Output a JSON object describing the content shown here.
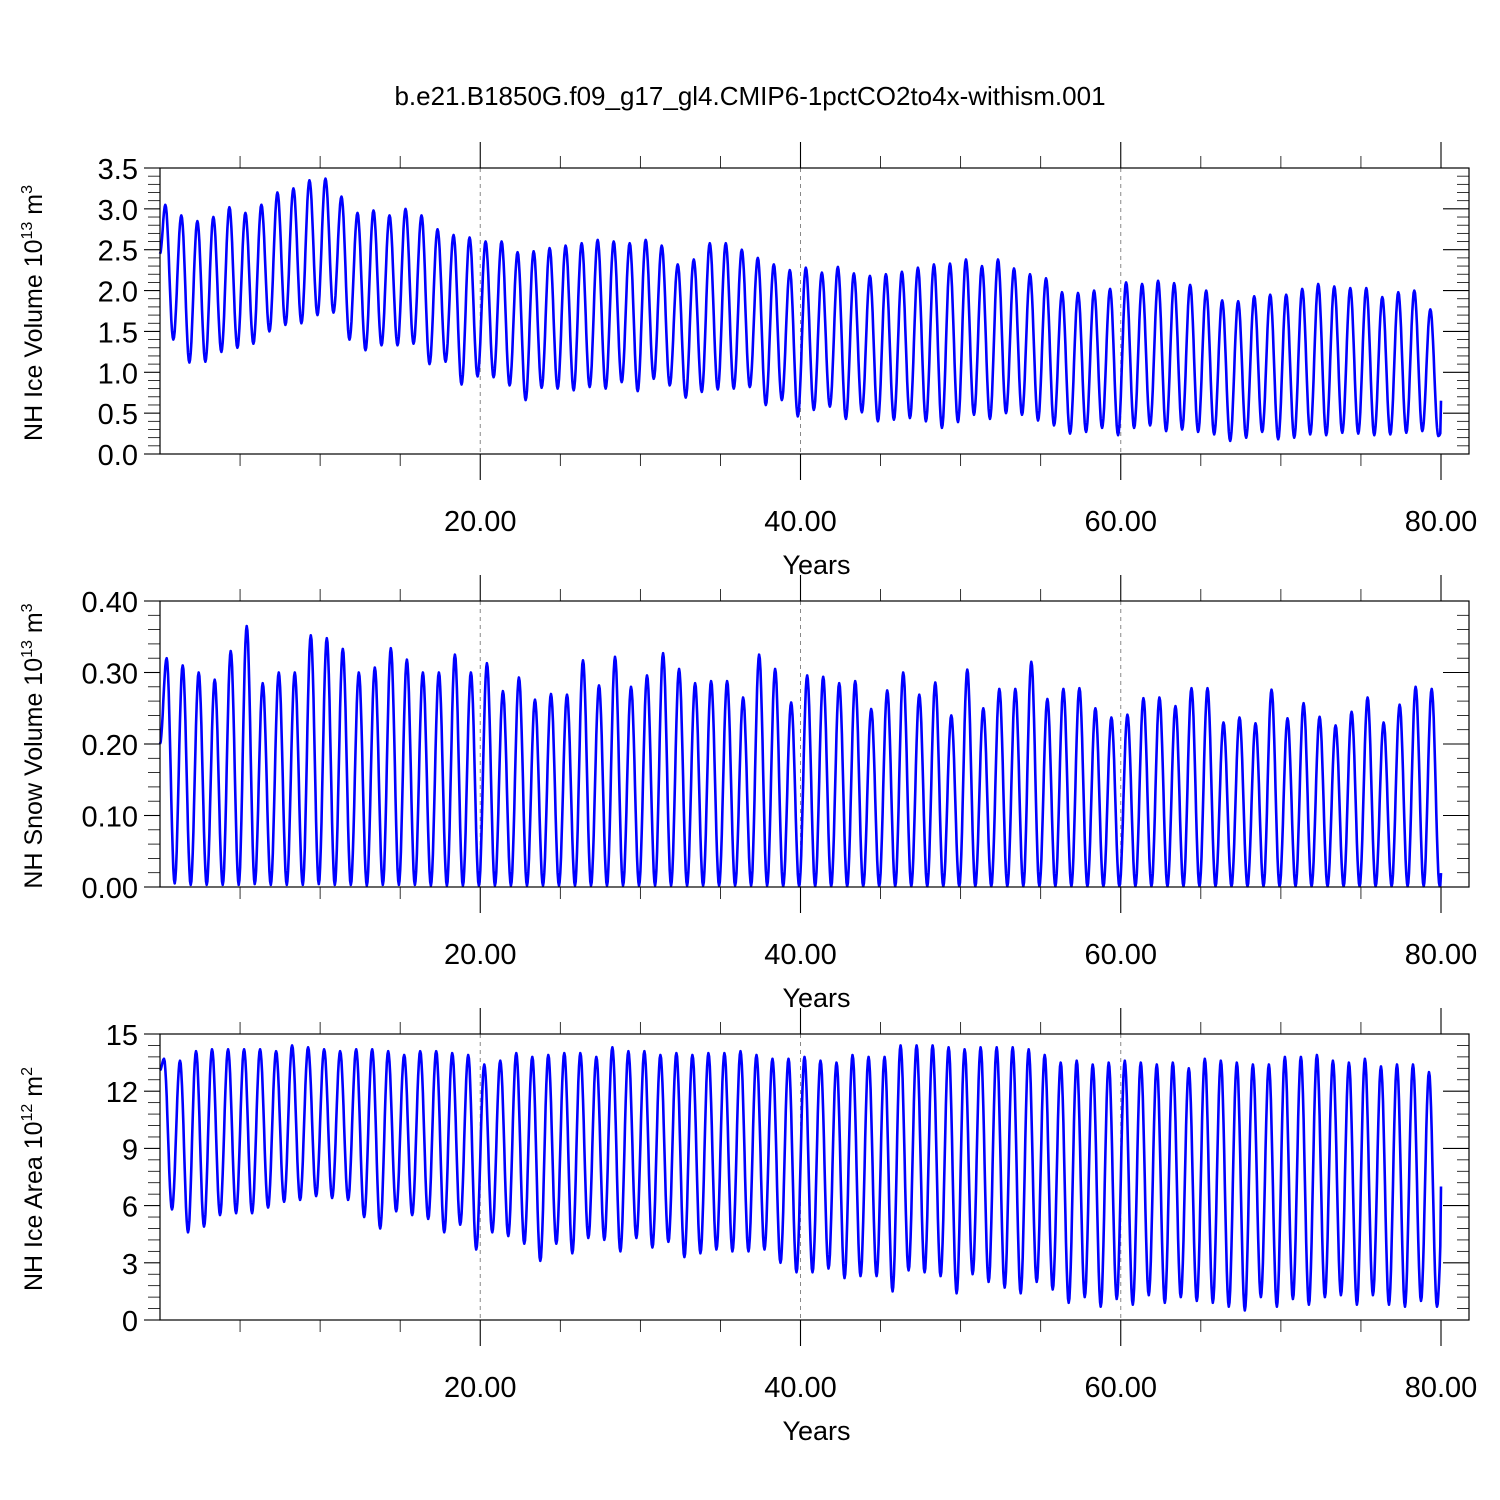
{
  "title": "b.e21.B1850G.f09_g17_gl4.CMIP6-1pctCO2to4x-withism.001",
  "colors": {
    "series": "#0000ff",
    "grid": "#888888",
    "axis": "#000000"
  },
  "chart_data": [
    {
      "type": "line",
      "ylabel": "NH Ice Volume 10",
      "ylabel_exp": "13",
      "ylabel_unit": " m",
      "ylabel_unit_exp": "3",
      "xlabel": "Years",
      "xlim": [
        0,
        80
      ],
      "ylim": [
        0,
        3.5
      ],
      "xticks": [
        20,
        40,
        60,
        80
      ],
      "xtick_labels": [
        "20.00",
        "40.00",
        "60.00",
        "80.00"
      ],
      "yticks": [
        0,
        0.5,
        1,
        1.5,
        2,
        2.5,
        3,
        3.5
      ],
      "ytick_labels": [
        "0.0",
        "0.5",
        "1.0",
        "1.5",
        "2.0",
        "2.5",
        "3.0",
        "3.5"
      ],
      "grid_x": [
        20,
        40,
        60
      ],
      "series": [
        {
          "cycle_peak_month": 4,
          "start_value": 2.45,
          "end_value": 0.45,
          "max": [
            3.05,
            2.92,
            2.85,
            2.9,
            3.02,
            2.95,
            3.05,
            3.2,
            3.25,
            3.35,
            3.37,
            3.15,
            2.95,
            2.98,
            2.92,
            3.0,
            2.92,
            2.75,
            2.68,
            2.65,
            2.6,
            2.6,
            2.47,
            2.48,
            2.52,
            2.55,
            2.58,
            2.62,
            2.6,
            2.58,
            2.62,
            2.55,
            2.32,
            2.38,
            2.58,
            2.58,
            2.5,
            2.4,
            2.32,
            2.25,
            2.28,
            2.22,
            2.29,
            2.21,
            2.18,
            2.2,
            2.23,
            2.28,
            2.32,
            2.33,
            2.38,
            2.3,
            2.38,
            2.27,
            2.2,
            2.15,
            1.98,
            1.97,
            2.0,
            2.02,
            2.1,
            2.08,
            2.12,
            2.09,
            2.07,
            2.0,
            1.88,
            1.87,
            1.93,
            1.95,
            1.95,
            2.02,
            2.08,
            2.05,
            2.03,
            2.03,
            1.92,
            1.98,
            2.0,
            1.77
          ],
          "min": [
            1.4,
            1.12,
            1.13,
            1.25,
            1.3,
            1.35,
            1.5,
            1.58,
            1.6,
            1.7,
            1.73,
            1.4,
            1.27,
            1.33,
            1.33,
            1.35,
            1.1,
            1.13,
            0.85,
            0.95,
            0.94,
            0.84,
            0.66,
            0.81,
            0.8,
            0.78,
            0.82,
            0.8,
            0.88,
            0.77,
            0.92,
            0.84,
            0.69,
            0.76,
            0.79,
            0.8,
            0.82,
            0.6,
            0.66,
            0.46,
            0.54,
            0.58,
            0.43,
            0.51,
            0.4,
            0.42,
            0.44,
            0.4,
            0.32,
            0.39,
            0.48,
            0.43,
            0.5,
            0.48,
            0.41,
            0.35,
            0.25,
            0.27,
            0.32,
            0.23,
            0.32,
            0.35,
            0.28,
            0.3,
            0.27,
            0.24,
            0.16,
            0.2,
            0.27,
            0.18,
            0.2,
            0.24,
            0.23,
            0.26,
            0.25,
            0.23,
            0.24,
            0.26,
            0.28,
            0.22
          ]
        }
      ]
    },
    {
      "type": "line",
      "ylabel": "NH Snow Volume 10",
      "ylabel_exp": "13",
      "ylabel_unit": " m",
      "ylabel_unit_exp": "3",
      "xlabel": "Years",
      "xlim": [
        0,
        80
      ],
      "ylim": [
        0,
        0.4
      ],
      "xticks": [
        20,
        40,
        60,
        80
      ],
      "xtick_labels": [
        "20.00",
        "40.00",
        "60.00",
        "80.00"
      ],
      "yticks": [
        0,
        0.1,
        0.2,
        0.3,
        0.4
      ],
      "ytick_labels": [
        "0.00",
        "0.10",
        "0.20",
        "0.30",
        "0.40"
      ],
      "grid_x": [
        20,
        40,
        60
      ],
      "series": [
        {
          "cycle_peak_month": 5,
          "start_value": 0.2,
          "end_value": 0.06,
          "max": [
            0.32,
            0.31,
            0.3,
            0.29,
            0.33,
            0.365,
            0.285,
            0.3,
            0.3,
            0.352,
            0.348,
            0.333,
            0.3,
            0.307,
            0.334,
            0.318,
            0.3,
            0.3,
            0.325,
            0.3,
            0.313,
            0.274,
            0.293,
            0.262,
            0.27,
            0.269,
            0.317,
            0.282,
            0.322,
            0.28,
            0.296,
            0.327,
            0.305,
            0.285,
            0.288,
            0.288,
            0.265,
            0.325,
            0.305,
            0.258,
            0.296,
            0.294,
            0.285,
            0.288,
            0.249,
            0.275,
            0.3,
            0.269,
            0.286,
            0.24,
            0.304,
            0.25,
            0.277,
            0.277,
            0.315,
            0.263,
            0.277,
            0.278,
            0.25,
            0.237,
            0.241,
            0.264,
            0.265,
            0.253,
            0.278,
            0.278,
            0.23,
            0.237,
            0.229,
            0.276,
            0.236,
            0.257,
            0.238,
            0.226,
            0.245,
            0.265,
            0.23,
            0.255,
            0.28,
            0.277
          ],
          "min": [
            0.005,
            0.003,
            0.003,
            0.003,
            0.003,
            0.004,
            0.003,
            0.003,
            0.003,
            0.004,
            0.003,
            0.003,
            0.002,
            0.003,
            0.003,
            0.003,
            0.002,
            0.002,
            0.002,
            0.002,
            0.002,
            0.002,
            0.002,
            0.002,
            0.002,
            0.002,
            0.002,
            0.002,
            0.002,
            0.002,
            0.002,
            0.002,
            0.002,
            0.002,
            0.002,
            0.002,
            0.002,
            0.002,
            0.001,
            0.001,
            0.001,
            0.001,
            0.001,
            0.001,
            0.001,
            0.001,
            0.001,
            0.001,
            0.001,
            0.001,
            0.001,
            0.001,
            0.001,
            0.001,
            0.001,
            0.001,
            0.001,
            0.001,
            0.001,
            0.001,
            0.001,
            0.001,
            0.001,
            0.001,
            0.001,
            0.001,
            0.001,
            0.001,
            0.001,
            0.001,
            0.001,
            0.001,
            0.001,
            0.001,
            0.001,
            0.001,
            0.001,
            0.001,
            0.001,
            0.001
          ]
        }
      ]
    },
    {
      "type": "line",
      "ylabel": "NH Ice Area 10",
      "ylabel_exp": "12",
      "ylabel_unit": " m",
      "ylabel_unit_exp": "2",
      "xlabel": "Years",
      "xlim": [
        0,
        80
      ],
      "ylim": [
        0,
        15
      ],
      "xticks": [
        20,
        40,
        60,
        80
      ],
      "xtick_labels": [
        "20.00",
        "40.00",
        "60.00",
        "80.00"
      ],
      "yticks": [
        0,
        3,
        6,
        9,
        12,
        15
      ],
      "ytick_labels": [
        "0",
        "3",
        "6",
        "9",
        "12",
        "15"
      ],
      "grid_x": [
        20,
        40,
        60
      ],
      "series": [
        {
          "cycle_peak_month": 3,
          "start_value": 13.1,
          "end_value": 9.3,
          "max": [
            13.7,
            13.6,
            14.1,
            14.2,
            14.2,
            14.2,
            14.2,
            14.1,
            14.4,
            14.3,
            14.2,
            14.1,
            14.2,
            14.2,
            14.1,
            13.9,
            14.1,
            14.1,
            14.0,
            13.9,
            13.4,
            13.6,
            14.0,
            13.8,
            13.9,
            14.0,
            14.0,
            13.8,
            14.3,
            14.1,
            14.1,
            13.9,
            14.0,
            13.9,
            14.0,
            14.0,
            14.1,
            13.9,
            13.7,
            13.7,
            13.8,
            13.6,
            13.5,
            13.9,
            13.8,
            13.8,
            14.4,
            14.4,
            14.4,
            14.3,
            14.2,
            14.3,
            14.3,
            14.3,
            14.2,
            13.9,
            13.5,
            13.6,
            13.4,
            13.5,
            13.6,
            13.5,
            13.4,
            13.5,
            13.2,
            13.7,
            13.6,
            13.5,
            13.4,
            13.4,
            13.8,
            13.8,
            13.9,
            13.6,
            13.5,
            13.7,
            13.3,
            13.4,
            13.4,
            13.0
          ],
          "min": [
            5.8,
            4.6,
            4.9,
            5.5,
            5.6,
            5.6,
            5.9,
            6.2,
            6.3,
            6.5,
            6.4,
            6.3,
            5.4,
            4.8,
            5.7,
            5.5,
            5.3,
            4.6,
            5.0,
            3.7,
            4.6,
            4.4,
            4.0,
            3.1,
            4.0,
            3.5,
            4.3,
            4.2,
            3.6,
            4.3,
            3.8,
            4.1,
            3.3,
            3.5,
            3.7,
            3.6,
            3.6,
            3.7,
            3.0,
            2.5,
            2.5,
            2.7,
            2.2,
            2.3,
            2.3,
            1.5,
            2.6,
            2.5,
            2.3,
            1.4,
            2.4,
            2.0,
            1.7,
            1.4,
            2.0,
            1.6,
            0.9,
            1.2,
            0.7,
            1.1,
            0.8,
            1.3,
            0.9,
            1.2,
            1.0,
            0.9,
            0.7,
            0.5,
            1.2,
            0.7,
            1.1,
            0.8,
            1.2,
            1.3,
            0.8,
            1.3,
            0.8,
            0.7,
            1.0,
            0.7
          ]
        }
      ]
    }
  ]
}
